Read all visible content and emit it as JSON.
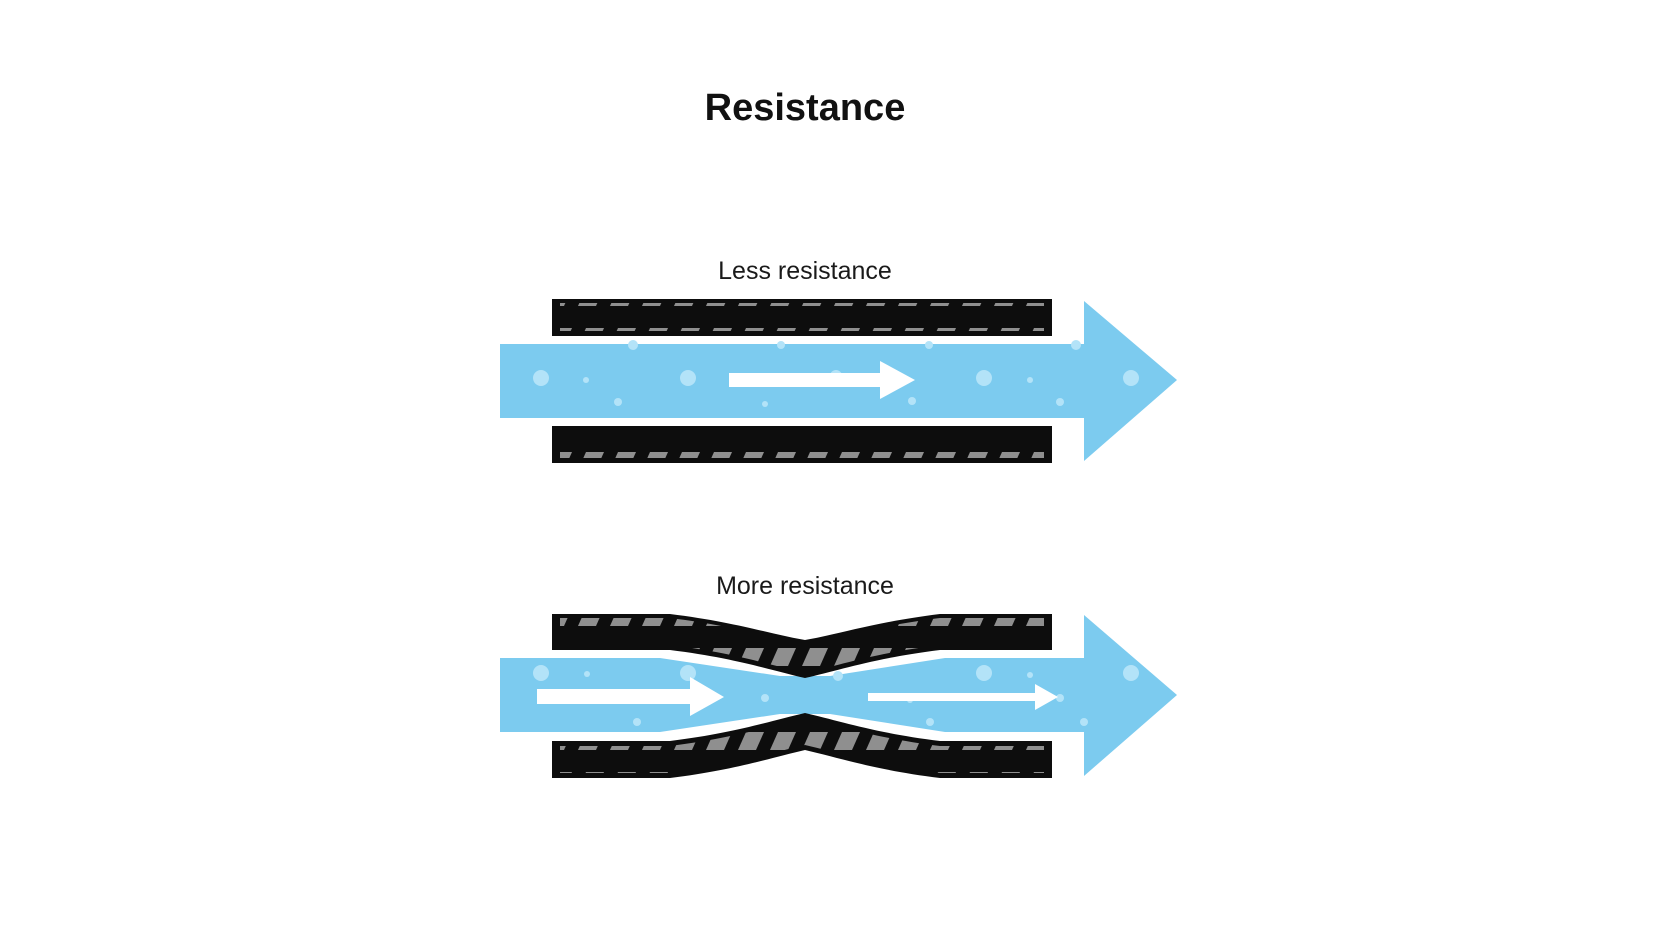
{
  "title": "Resistance",
  "panels": [
    {
      "label": "Less resistance"
    },
    {
      "label": "More resistance"
    }
  ],
  "colors": {
    "flow": "#7ccbef",
    "flow_bubble": "#b3e3f8",
    "vessel_wall": "#0d0d0d",
    "vessel_stripe": "#8f8f8f",
    "flow_arrow": "#ffffff",
    "text": "#111111",
    "background": "#ffffff"
  }
}
